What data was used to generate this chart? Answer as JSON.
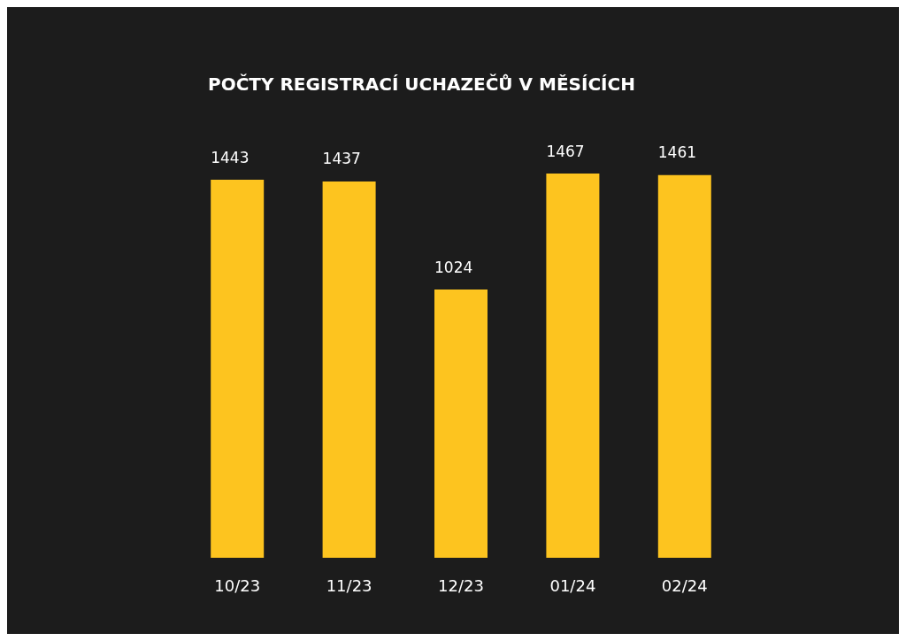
{
  "chart_data": {
    "type": "bar",
    "title": "POČTY REGISTRACÍ UCHAZEČŮ V MĚSÍCÍCH",
    "categories": [
      "10/23",
      "11/23",
      "12/23",
      "01/24",
      "02/24"
    ],
    "values": [
      1443,
      1437,
      1024,
      1467,
      1461
    ],
    "color": "#fdc41f",
    "data_labels": true
  }
}
